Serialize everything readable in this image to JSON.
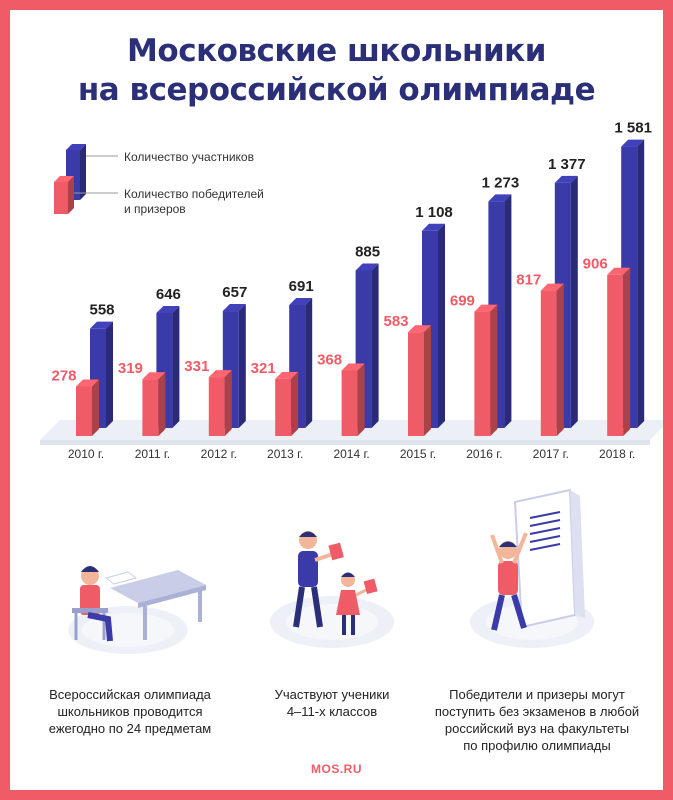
{
  "title": {
    "line1": "Московские школьники",
    "line2": "на всероссийской олимпиаде"
  },
  "colors": {
    "participants": "#3a3aa8",
    "winners": "#ef5b66",
    "title": "#2b2f77",
    "frame": "#ef5b66"
  },
  "chart_data": {
    "type": "bar",
    "categories": [
      "2010 г.",
      "2011 г.",
      "2012 г.",
      "2013 г.",
      "2014 г.",
      "2015 г.",
      "2016 г.",
      "2017 г.",
      "2018 г."
    ],
    "series": [
      {
        "name": "Количество участников",
        "values": [
          558,
          646,
          657,
          691,
          885,
          1108,
          1273,
          1377,
          1581
        ],
        "labels": [
          "558",
          "646",
          "657",
          "691",
          "885",
          "1 108",
          "1 273",
          "1 377",
          "1 581"
        ]
      },
      {
        "name": "Количество победителей и призеров",
        "values": [
          278,
          319,
          331,
          321,
          368,
          583,
          699,
          817,
          906
        ],
        "labels": [
          "278",
          "319",
          "331",
          "321",
          "368",
          "583",
          "699",
          "817",
          "906"
        ]
      }
    ],
    "legend": {
      "participants_label": "Количество участников",
      "winners_line1": "Количество победителей",
      "winners_line2": "и призеров",
      "placement": "top-left"
    },
    "grid": false
  },
  "info": {
    "card1": {
      "line1": "Всероссийская олимпиада",
      "line2": "школьников проводится",
      "line3": "ежегодно по 24 предметам",
      "icon": "student-at-desk-icon"
    },
    "card2": {
      "line1": "Участвуют ученики",
      "line2": "4–11-х классов",
      "icon": "parent-and-child-icon"
    },
    "card3": {
      "line1": "Победители и призеры могут",
      "line2": "поступить без экзаменов в любой",
      "line3": "российский вуз на факультеты",
      "line4": "по профилю олимпиады",
      "icon": "person-at-board-icon"
    }
  },
  "brand": "MOS.RU"
}
